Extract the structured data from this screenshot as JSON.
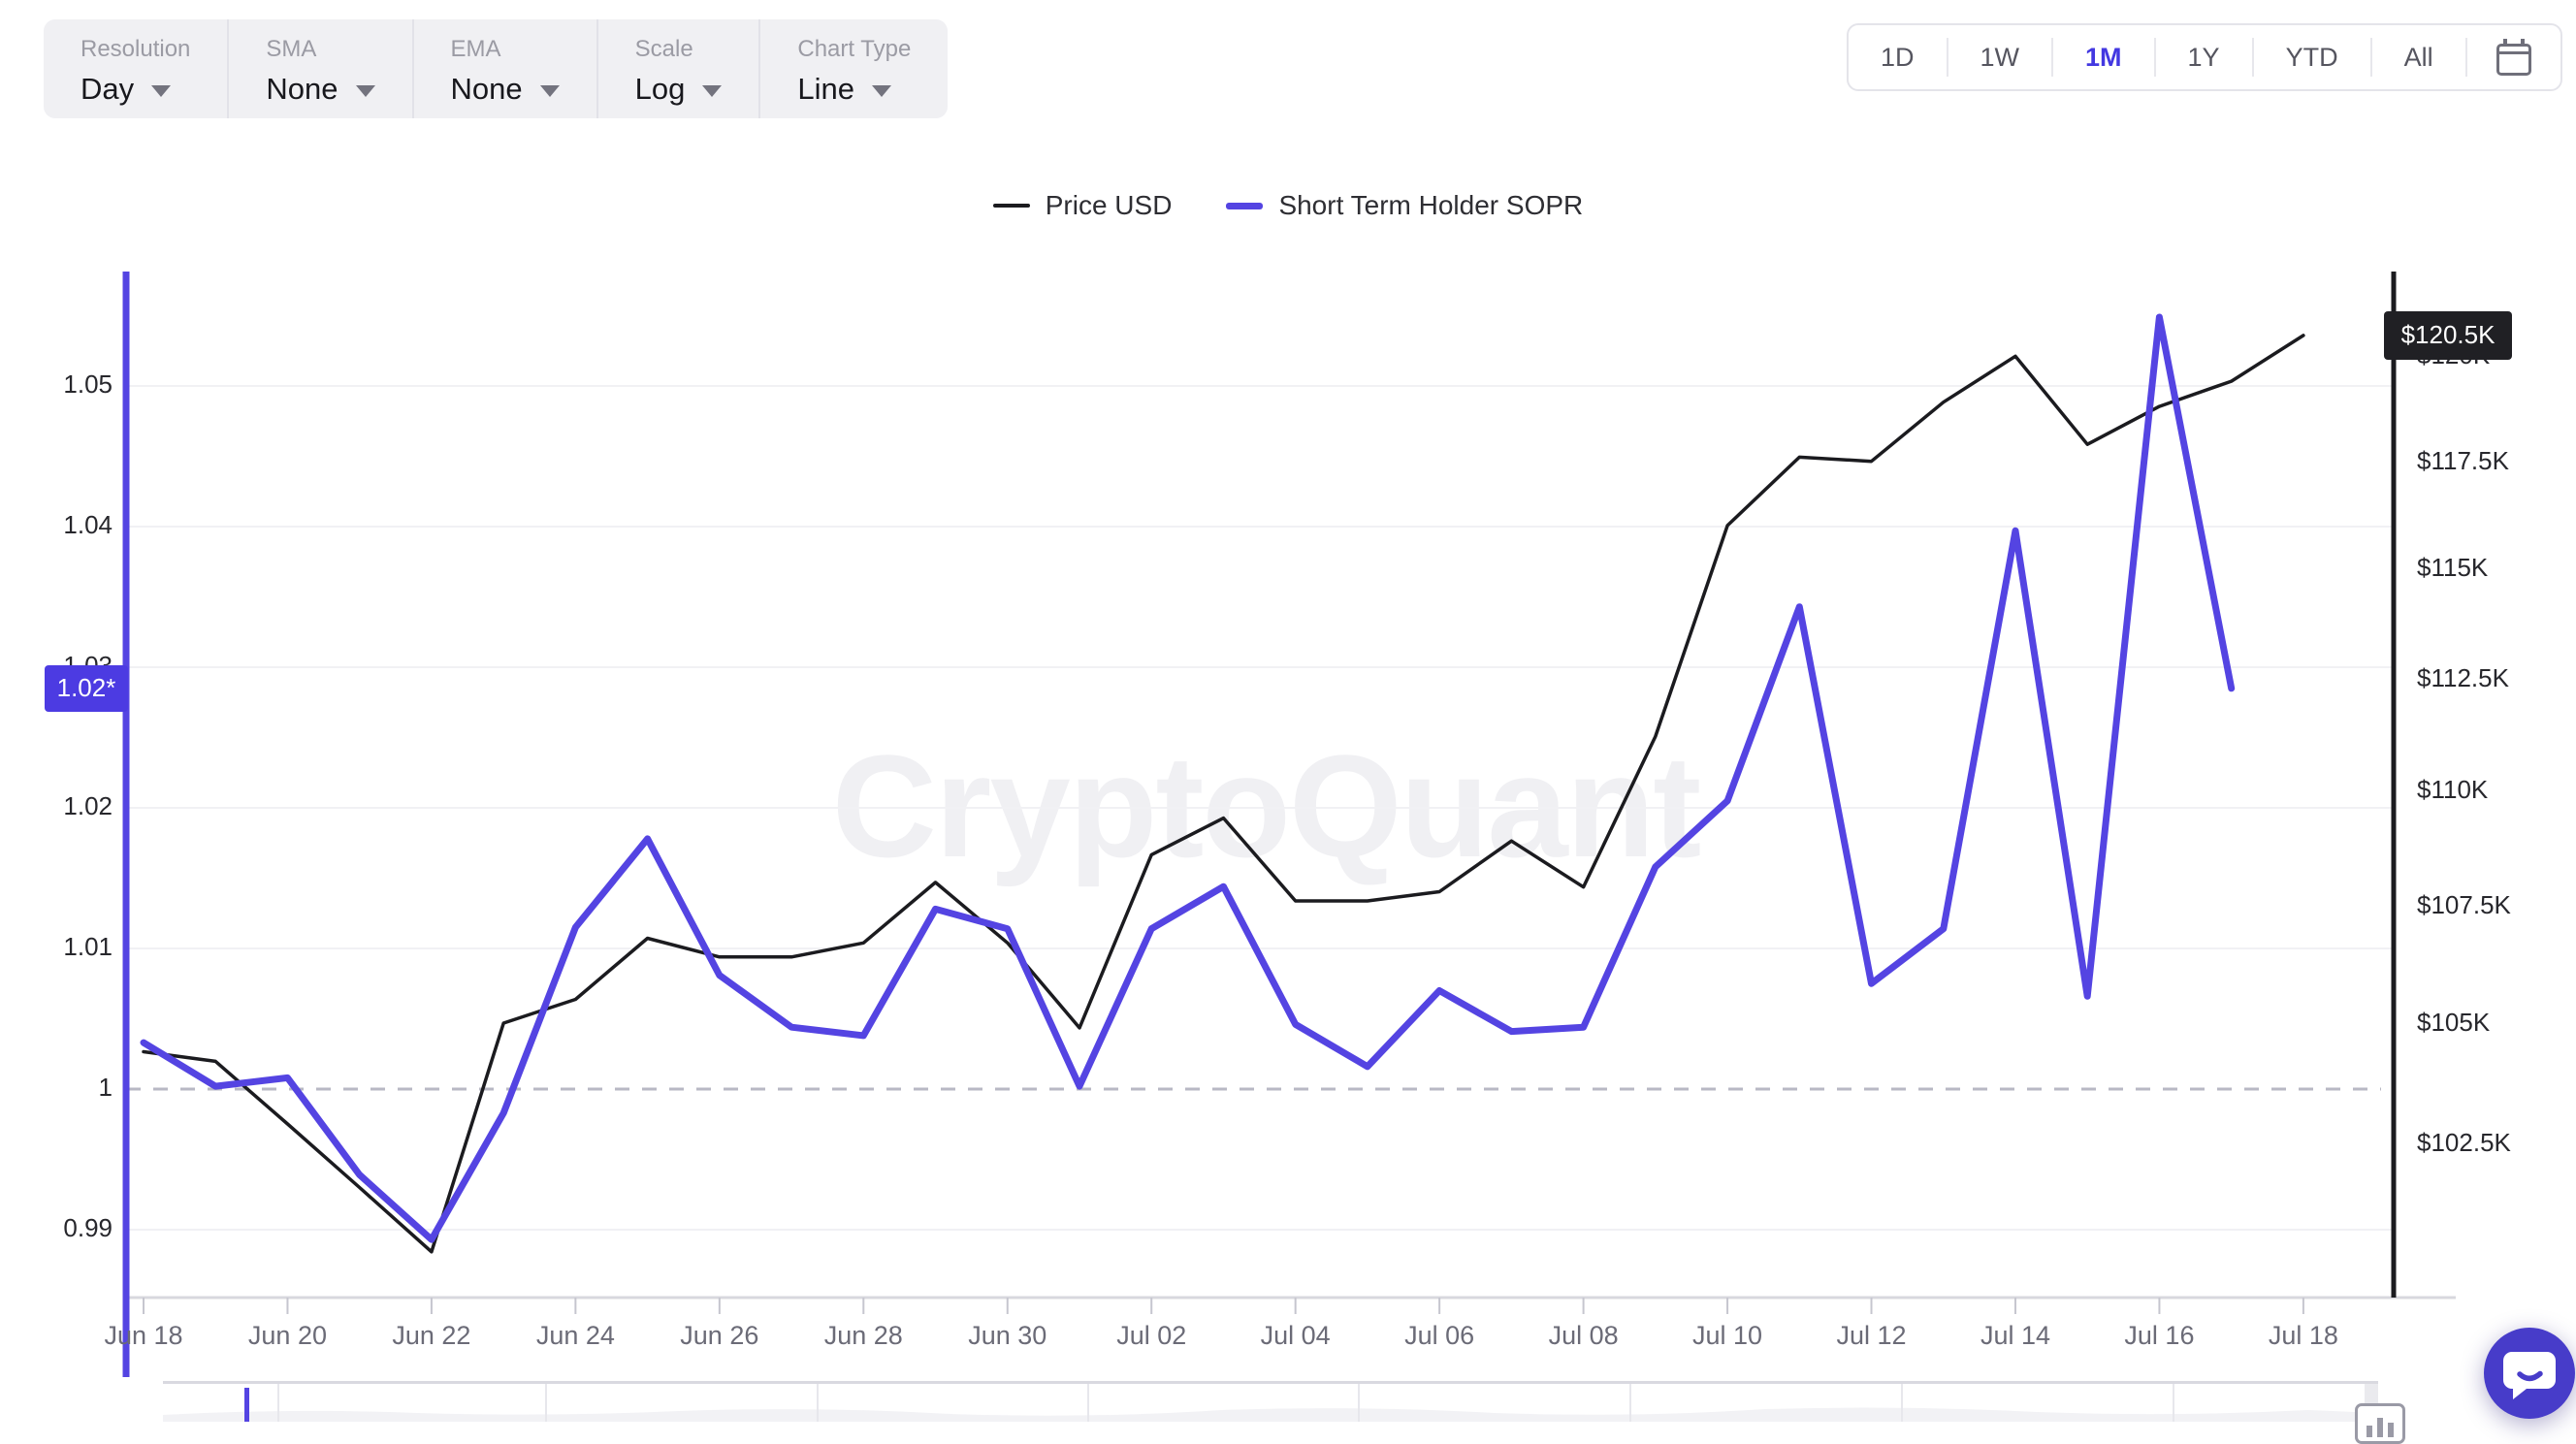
{
  "watermark": "CryptoQuant",
  "toolbar": {
    "groups": [
      {
        "label": "Resolution",
        "value": "Day"
      },
      {
        "label": "SMA",
        "value": "None"
      },
      {
        "label": "EMA",
        "value": "None"
      },
      {
        "label": "Scale",
        "value": "Log"
      },
      {
        "label": "Chart Type",
        "value": "Line"
      }
    ]
  },
  "time_ranges": {
    "options": [
      "1D",
      "1W",
      "1M",
      "1Y",
      "YTD",
      "All"
    ],
    "active": "1M",
    "calendar_icon": "calendar-icon"
  },
  "legend": {
    "items": [
      {
        "label": "Price USD",
        "color": "#1b1b1f"
      },
      {
        "label": "Short Term Holder SOPR",
        "color": "#5444e2"
      }
    ]
  },
  "axes": {
    "left_ticks": [
      "1.05",
      "1.04",
      "1.03",
      "1.02",
      "1.01",
      "1",
      "0.99"
    ],
    "left_badge": "1.02*",
    "right_ticks": [
      "$120K",
      "$117.5K",
      "$115K",
      "$112.5K",
      "$110K",
      "$107.5K",
      "$105K",
      "$102.5K"
    ],
    "right_badge": "$120.5K",
    "x_ticks": [
      "Jun 18",
      "Jun 20",
      "Jun 22",
      "Jun 24",
      "Jun 26",
      "Jun 28",
      "Jun 30",
      "Jul 02",
      "Jul 04",
      "Jul 06",
      "Jul 08",
      "Jul 10",
      "Jul 12",
      "Jul 14",
      "Jul 16",
      "Jul 18"
    ]
  },
  "chart_data": {
    "type": "line",
    "title": "",
    "x": [
      "Jun 18",
      "Jun 19",
      "Jun 20",
      "Jun 21",
      "Jun 22",
      "Jun 23",
      "Jun 24",
      "Jun 25",
      "Jun 26",
      "Jun 27",
      "Jun 28",
      "Jun 29",
      "Jun 30",
      "Jul 01",
      "Jul 02",
      "Jul 03",
      "Jul 04",
      "Jul 05",
      "Jul 06",
      "Jul 07",
      "Jul 08",
      "Jul 09",
      "Jul 10",
      "Jul 11",
      "Jul 12",
      "Jul 13",
      "Jul 14",
      "Jul 15",
      "Jul 16",
      "Jul 17",
      "Jul 18"
    ],
    "series": [
      {
        "name": "Price USD",
        "axis": "right",
        "color": "#1b1b1f",
        "unit": "thousand USD",
        "values": [
          104.4,
          104.2,
          102.9,
          101.6,
          100.3,
          105.0,
          105.5,
          106.8,
          106.4,
          106.4,
          106.7,
          108.0,
          106.7,
          104.9,
          108.6,
          109.4,
          107.6,
          107.6,
          107.8,
          108.9,
          107.9,
          111.2,
          116.0,
          117.6,
          117.5,
          118.9,
          120.0,
          117.9,
          118.8,
          119.4,
          120.5
        ]
      },
      {
        "name": "Short Term Holder SOPR",
        "axis": "left",
        "color": "#5444e2",
        "unit": "ratio",
        "values": [
          1.0033,
          1.0002,
          1.0008,
          0.9939,
          0.9893,
          0.9983,
          1.0115,
          1.0178,
          1.0081,
          1.0044,
          1.0038,
          1.0128,
          1.0114,
          1.0002,
          1.0114,
          1.0144,
          1.0046,
          1.0016,
          1.007,
          1.0041,
          1.0044,
          1.0158,
          1.0205,
          1.0343,
          1.0075,
          1.0114,
          1.0397,
          1.0066,
          1.0549,
          1.0285,
          null
        ]
      }
    ],
    "left_axis": {
      "ticks": [
        1.05,
        1.04,
        1.03,
        1.02,
        1.01,
        1,
        0.99
      ],
      "baseline": 1,
      "last_value_badge": "1.02*"
    },
    "right_axis": {
      "scale": "log",
      "ticks_thousands": [
        120,
        117.5,
        115,
        112.5,
        110,
        107.5,
        105,
        102.5
      ],
      "last_value_badge": "$120.5K"
    },
    "grid": "horizontal, baseline 1.0 dashed",
    "legend_position": "top-center"
  },
  "colors": {
    "accent_active": "#4338e1",
    "sopr_line": "#5444e2",
    "price_line": "#1b1b1f",
    "grid": "#f1f1f4",
    "baseline_dash": "#b8b8c4",
    "badge_price_bg": "#202024",
    "badge_sopr_bg": "#4c3be2",
    "chat_button": "#473cc9"
  },
  "chat": {
    "icon": "chat-bubble-icon"
  }
}
